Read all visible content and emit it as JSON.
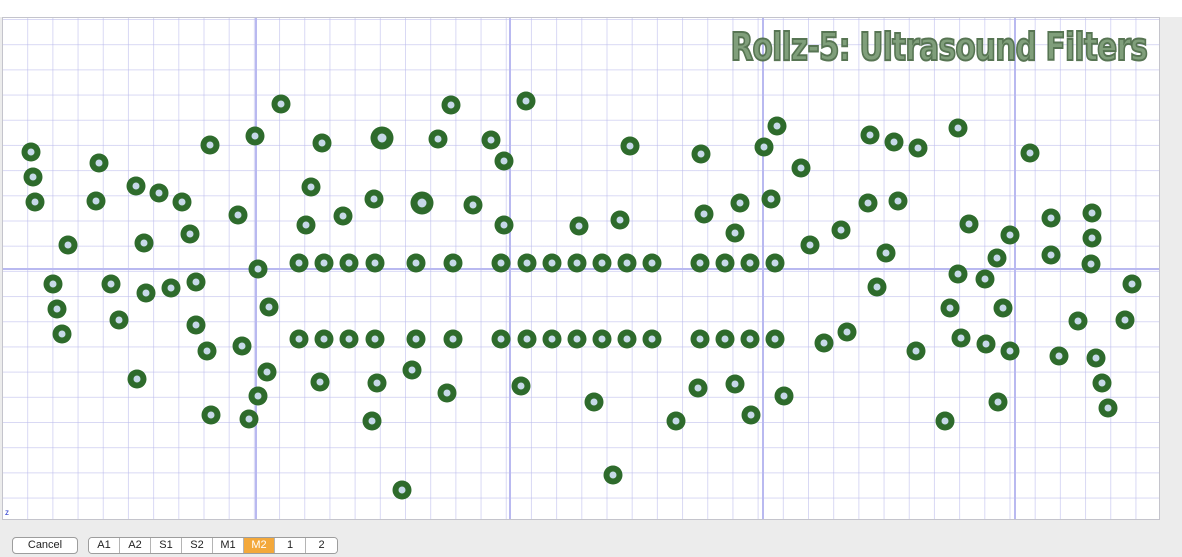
{
  "board": {
    "title": "Rollz-5: Ultrasound Filters",
    "corner_mark": "z",
    "pad_ring_color": "#2e6b2c",
    "pad_hole_color": "#c6d9e8",
    "grid_color": "#c8c8f0",
    "title_color": "#7a9a74"
  },
  "toolbar": {
    "cancel_label": "Cancel",
    "tabs": [
      {
        "label": "A1",
        "active": false
      },
      {
        "label": "A2",
        "active": false
      },
      {
        "label": "S1",
        "active": false
      },
      {
        "label": "S2",
        "active": false
      },
      {
        "label": "M1",
        "active": false
      },
      {
        "label": "M2",
        "active": true
      },
      {
        "label": "1",
        "active": false
      },
      {
        "label": "2",
        "active": false
      }
    ],
    "active_color": "#f3a83b"
  }
}
